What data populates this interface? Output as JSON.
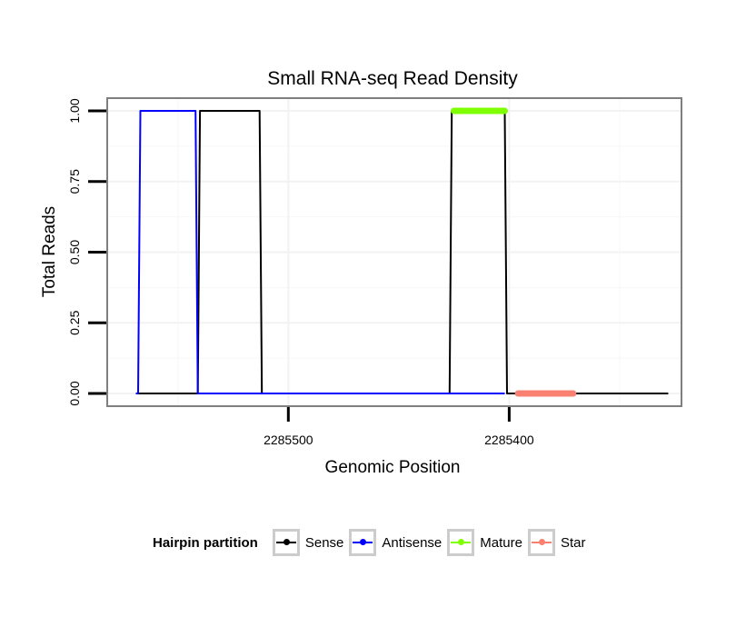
{
  "chart_data": {
    "type": "line",
    "title": "Small RNA-seq Read Density",
    "xlabel": "Genomic Position",
    "ylabel": "Total Reads",
    "x_reversed": true,
    "xlim": [
      2285582,
      2285322
    ],
    "ylim": [
      -0.045,
      1.045
    ],
    "x_ticks": [
      2285500,
      2285400
    ],
    "x_tick_labels": [
      "2285500",
      "2285400"
    ],
    "y_ticks": [
      0,
      0.25,
      0.5,
      0.75,
      1.0
    ],
    "y_tick_labels": [
      "0.00",
      "0.25",
      "0.50",
      "0.75",
      "1.00"
    ],
    "grid": true,
    "legend": {
      "title": "Hairpin partition",
      "position": "bottom",
      "entries": [
        "Sense",
        "Antisense",
        "Mature",
        "Star"
      ]
    },
    "series": [
      {
        "name": "Sense",
        "color": "#000000",
        "x": [
          2285569,
          2285541,
          2285540,
          2285539,
          2285514,
          2285513,
          2285512,
          2285427,
          2285426,
          2285425,
          2285403,
          2285402,
          2285401,
          2285328
        ],
        "y": [
          0,
          0,
          1,
          1,
          1,
          1,
          0,
          0,
          1,
          1,
          1,
          1,
          0,
          0
        ]
      },
      {
        "name": "Antisense",
        "color": "#0000ff",
        "x": [
          2285569,
          2285568,
          2285567,
          2285542,
          2285541,
          2285512,
          2285427,
          2285402
        ],
        "y": [
          0,
          0,
          1,
          1,
          0,
          0,
          0,
          0
        ]
      },
      {
        "name": "Mature",
        "color": "#7fff00",
        "x": [
          2285425,
          2285402
        ],
        "y": [
          1,
          1
        ]
      },
      {
        "name": "Star",
        "color": "#fa8072",
        "x": [
          2285396,
          2285371
        ],
        "y": [
          0,
          0
        ]
      }
    ]
  }
}
